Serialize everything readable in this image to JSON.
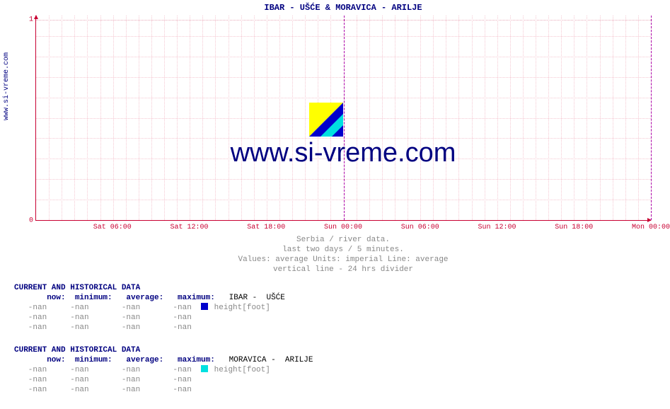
{
  "title": "IBAR -  UŠĆE &  MORAVICA -  ARILJE",
  "side_label": "www.si-vreme.com",
  "watermark": "www.si-vreme.com",
  "chart": {
    "type": "line",
    "ylim": [
      0,
      1
    ],
    "yticks": [
      0,
      1
    ],
    "xlabels": [
      "Sat 06:00",
      "Sat 12:00",
      "Sat 18:00",
      "Sun 00:00",
      "Sun 06:00",
      "Sun 12:00",
      "Sun 18:00",
      "Mon 00:00"
    ],
    "xpositions_pct": [
      12.5,
      25,
      37.5,
      50,
      62.5,
      75,
      87.5,
      100
    ],
    "divider_pct": [
      50,
      100
    ],
    "minor_x_count": 48,
    "minor_y_count": 10,
    "axis_color": "#c80032",
    "grid_color": "#f5c8d2",
    "divider_color": "#aa00aa",
    "background": "#ffffff"
  },
  "logo_colors": {
    "a": "#ffff00",
    "b": "#0000cc",
    "c": "#00e0e0"
  },
  "subtitle": {
    "l1": "Serbia / river data.",
    "l2": "last two days / 5 minutes.",
    "l3": "Values: average  Units: imperial  Line: average",
    "l4": "vertical line - 24 hrs  divider"
  },
  "tables": [
    {
      "header": "CURRENT AND HISTORICAL DATA",
      "cols": "       now:  minimum:   average:   maximum:",
      "station": "   IBAR -  UŠĆE",
      "swatch": "#0000cc",
      "legend_label": " height[foot]",
      "rows": [
        "   -nan     -nan       -nan       -nan  ",
        "   -nan     -nan       -nan       -nan",
        "   -nan     -nan       -nan       -nan"
      ]
    },
    {
      "header": "CURRENT AND HISTORICAL DATA",
      "cols": "       now:  minimum:   average:   maximum:",
      "station": "   MORAVICA -  ARILJE",
      "swatch": "#00e0e0",
      "legend_label": " height[foot]",
      "rows": [
        "   -nan     -nan       -nan       -nan  ",
        "   -nan     -nan       -nan       -nan",
        "   -nan     -nan       -nan       -nan"
      ]
    }
  ]
}
